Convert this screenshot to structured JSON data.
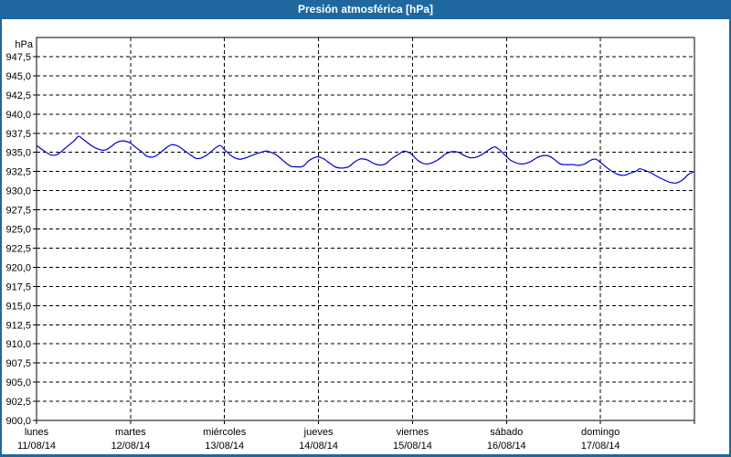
{
  "window": {
    "title": "Presión atmosférica [hPa]"
  },
  "colors": {
    "frame_and_titlebar": "#1f689f",
    "title_text": "#ffffff",
    "plot_background": "#ffffff",
    "grid_and_axis": "#000000",
    "series_line": "#0000cc"
  },
  "chart_data": {
    "type": "line",
    "title": "Presión atmosférica [hPa]",
    "unit_label": "hPa",
    "grid": {
      "style": "dashed",
      "horizontal": true,
      "vertical": true
    },
    "legend": "none",
    "y_axis": {
      "min": 900,
      "max": 950,
      "tick_step": 2.5,
      "decimal_separator": ",",
      "labels_bottom_to_top": [
        "900,0",
        "902,5",
        "905,0",
        "907,5",
        "910,0",
        "912,5",
        "915,0",
        "917,5",
        "920,0",
        "922,5",
        "925,0",
        "927,5",
        "930,0",
        "932,5",
        "935,0",
        "937,5",
        "940,0",
        "942,5",
        "945,0",
        "947,5"
      ]
    },
    "x_axis": {
      "total_hours": 168,
      "days": [
        {
          "name": "lunes",
          "date": "11/08/14"
        },
        {
          "name": "martes",
          "date": "12/08/14"
        },
        {
          "name": "miércoles",
          "date": "13/08/14"
        },
        {
          "name": "jueves",
          "date": "14/08/14"
        },
        {
          "name": "viernes",
          "date": "15/08/14"
        },
        {
          "name": "sábado",
          "date": "16/08/14"
        },
        {
          "name": "domingo",
          "date": "17/08/14"
        }
      ]
    },
    "series": [
      {
        "name": "Presión atmosférica",
        "color": "#0000cc",
        "points_hours_hpa": [
          [
            0,
            935.9
          ],
          [
            1.9,
            935.2
          ],
          [
            3.7,
            934.65
          ],
          [
            5.4,
            934.75
          ],
          [
            7.2,
            935.5
          ],
          [
            9.6,
            936.5
          ],
          [
            10.7,
            937.1
          ],
          [
            11.9,
            936.7
          ],
          [
            14,
            935.9
          ],
          [
            15.9,
            935.4
          ],
          [
            17.5,
            935.3
          ],
          [
            18.9,
            935.7
          ],
          [
            20.5,
            936.3
          ],
          [
            22.2,
            936.5
          ],
          [
            24,
            936.2
          ],
          [
            25.2,
            935.7
          ],
          [
            26.8,
            935.1
          ],
          [
            28.2,
            934.5
          ],
          [
            29.9,
            934.4
          ],
          [
            31.5,
            934.9
          ],
          [
            32.9,
            935.5
          ],
          [
            34.5,
            936.0
          ],
          [
            36.2,
            935.8
          ],
          [
            37.6,
            935.3
          ],
          [
            39.2,
            934.7
          ],
          [
            40.8,
            934.2
          ],
          [
            42.2,
            934.3
          ],
          [
            43.9,
            934.8
          ],
          [
            45.5,
            935.5
          ],
          [
            46.9,
            935.9
          ],
          [
            48.1,
            935.3
          ],
          [
            50.2,
            934.4
          ],
          [
            51.8,
            934.1
          ],
          [
            53.2,
            934.25
          ],
          [
            55.5,
            934.7
          ],
          [
            57.9,
            935.1
          ],
          [
            59,
            935.15
          ],
          [
            61.1,
            934.7
          ],
          [
            63.5,
            933.7
          ],
          [
            64.9,
            933.2
          ],
          [
            66.5,
            933.1
          ],
          [
            68.1,
            933.2
          ],
          [
            69.5,
            933.9
          ],
          [
            71.2,
            934.35
          ],
          [
            72.1,
            934.4
          ],
          [
            73.5,
            934.1
          ],
          [
            75.1,
            933.5
          ],
          [
            76.5,
            933.05
          ],
          [
            78.2,
            932.95
          ],
          [
            79.8,
            933.15
          ],
          [
            81.2,
            933.75
          ],
          [
            82.8,
            934.15
          ],
          [
            84.5,
            934.0
          ],
          [
            85.9,
            933.6
          ],
          [
            87.5,
            933.35
          ],
          [
            89.1,
            933.5
          ],
          [
            90.5,
            934.1
          ],
          [
            92.6,
            934.8
          ],
          [
            93.8,
            935.15
          ],
          [
            95,
            935.0
          ],
          [
            95.9,
            934.7
          ],
          [
            97.5,
            933.9
          ],
          [
            99.2,
            933.5
          ],
          [
            100.8,
            933.6
          ],
          [
            102.7,
            934.1
          ],
          [
            104.5,
            934.8
          ],
          [
            106.2,
            935.1
          ],
          [
            107.8,
            935.0
          ],
          [
            109.2,
            934.6
          ],
          [
            110.8,
            934.3
          ],
          [
            112.5,
            934.4
          ],
          [
            114.3,
            934.9
          ],
          [
            116,
            935.5
          ],
          [
            117.1,
            935.7
          ],
          [
            118.3,
            935.3
          ],
          [
            119.9,
            934.5
          ],
          [
            121.3,
            933.9
          ],
          [
            123,
            933.55
          ],
          [
            124.4,
            933.5
          ],
          [
            126,
            933.75
          ],
          [
            127.6,
            934.25
          ],
          [
            129,
            934.55
          ],
          [
            130.7,
            934.55
          ],
          [
            132.3,
            934.05
          ],
          [
            133.7,
            933.5
          ],
          [
            135.3,
            933.4
          ],
          [
            137,
            933.4
          ],
          [
            138.4,
            933.3
          ],
          [
            140,
            933.5
          ],
          [
            141.6,
            934.0
          ],
          [
            142.8,
            934.1
          ],
          [
            144,
            933.7
          ],
          [
            145.4,
            933.1
          ],
          [
            147,
            932.5
          ],
          [
            148.6,
            932.1
          ],
          [
            150,
            932.0
          ],
          [
            151.7,
            932.3
          ],
          [
            153.3,
            932.6
          ],
          [
            154,
            932.85
          ],
          [
            155.6,
            932.6
          ],
          [
            157,
            932.3
          ],
          [
            158.7,
            931.8
          ],
          [
            160.3,
            931.4
          ],
          [
            161.7,
            931.1
          ],
          [
            163.3,
            931.0
          ],
          [
            165,
            931.4
          ],
          [
            166.4,
            932.1
          ],
          [
            168,
            932.5
          ]
        ]
      }
    ]
  }
}
